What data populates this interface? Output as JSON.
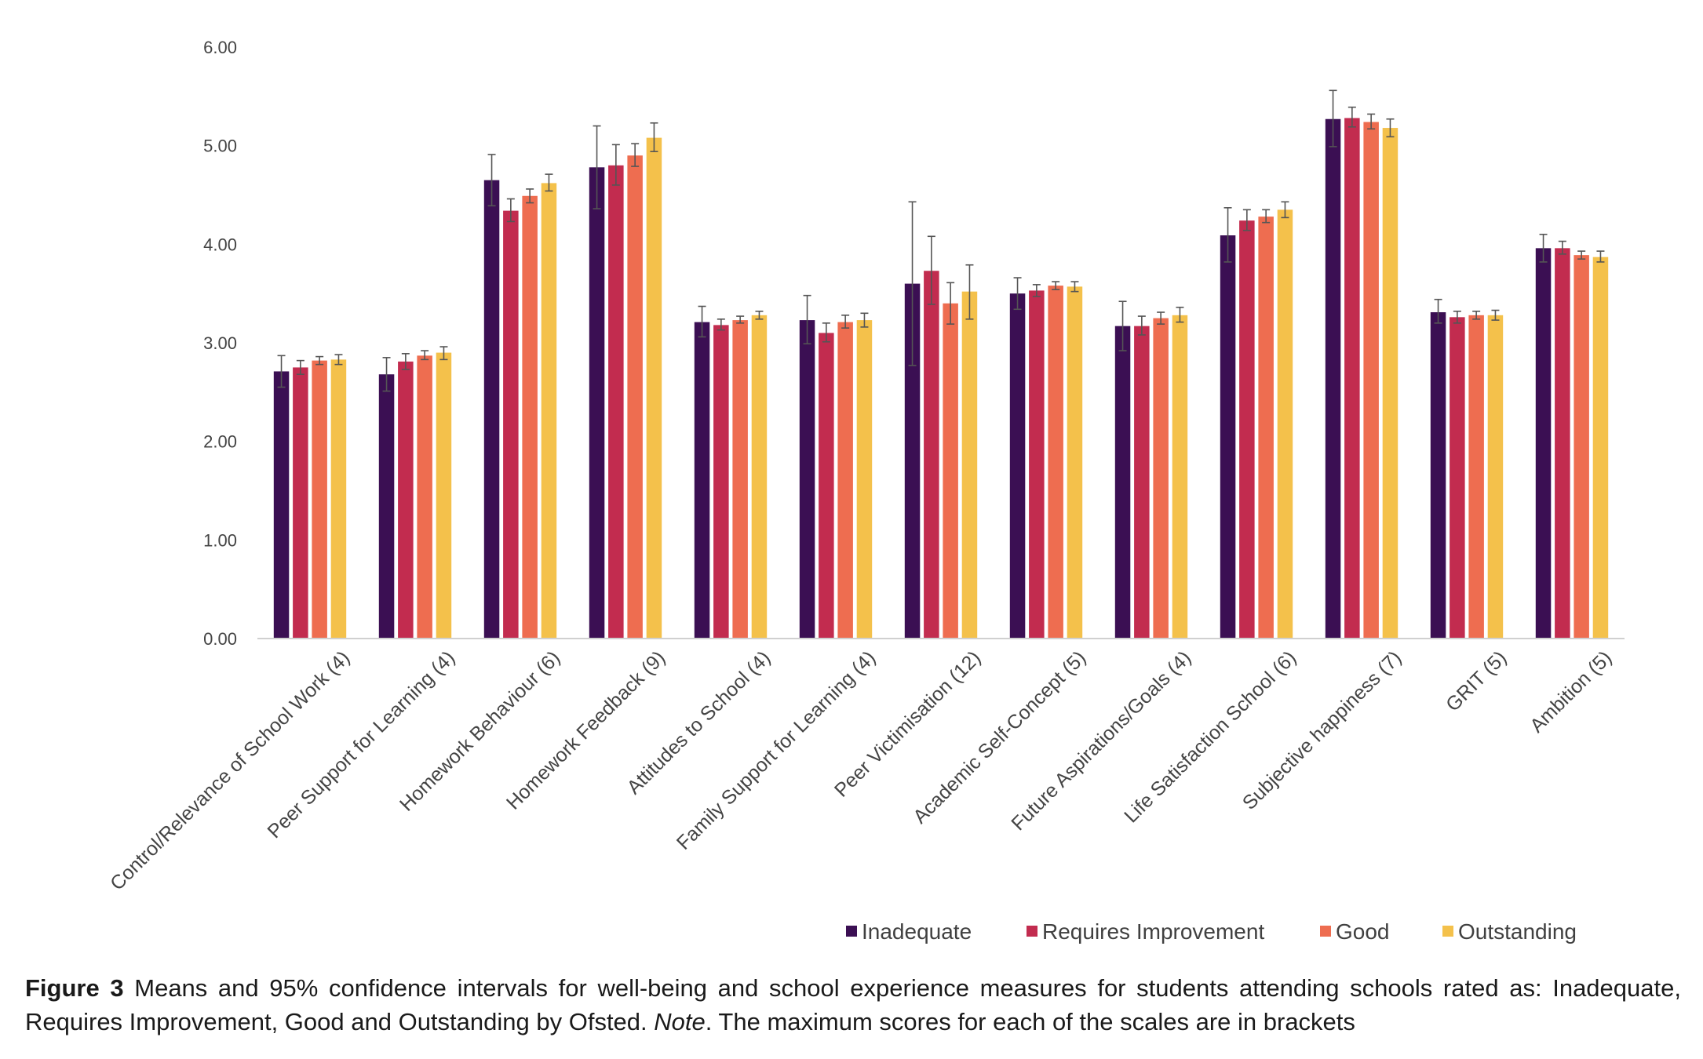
{
  "chart_data": {
    "type": "bar",
    "title": "",
    "xlabel": "",
    "ylabel": "",
    "ylim": [
      0,
      6
    ],
    "yticks": [
      "0.00",
      "1.00",
      "2.00",
      "3.00",
      "4.00",
      "5.00",
      "6.00"
    ],
    "grid": false,
    "legend_position": "bottom-right",
    "categories": [
      "Control/Relevance of School Work (4)",
      "Peer Support for Learning (4)",
      "Homework Behaviour (6)",
      "Homework Feedback (9)",
      "Attitudes to School (4)",
      "Family Support for Learning (4)",
      "Peer Victimisation (12)",
      "Academic Self-Concept (5)",
      "Future Aspirations/Goals (4)",
      "Life Satisfaction School (6)",
      "Subjective happiness (7)",
      "GRIT (5)",
      "Ambition (5)"
    ],
    "series": [
      {
        "name": "Inadequate",
        "color": "#3b0f53",
        "values": [
          2.71,
          2.68,
          4.65,
          4.78,
          3.21,
          3.23,
          3.6,
          3.5,
          3.17,
          4.09,
          5.27,
          3.31,
          3.96
        ],
        "ci_low": [
          2.55,
          2.51,
          4.39,
          4.36,
          3.06,
          2.99,
          2.77,
          3.34,
          2.92,
          3.82,
          4.99,
          3.2,
          3.82
        ],
        "ci_high": [
          2.87,
          2.85,
          4.91,
          5.2,
          3.37,
          3.48,
          4.43,
          3.66,
          3.42,
          4.37,
          5.56,
          3.44,
          4.1
        ]
      },
      {
        "name": "Requires Improvement",
        "color": "#c22c4f",
        "values": [
          2.75,
          2.81,
          4.34,
          4.8,
          3.18,
          3.1,
          3.73,
          3.53,
          3.17,
          4.24,
          5.28,
          3.26,
          3.96
        ],
        "ci_low": [
          2.68,
          2.73,
          4.23,
          4.6,
          3.13,
          3.01,
          3.39,
          3.47,
          3.08,
          4.14,
          5.19,
          3.2,
          3.9
        ],
        "ci_high": [
          2.82,
          2.89,
          4.46,
          5.01,
          3.24,
          3.2,
          4.08,
          3.59,
          3.27,
          4.35,
          5.39,
          3.32,
          4.03
        ]
      },
      {
        "name": "Good",
        "color": "#ee6d50",
        "values": [
          2.82,
          2.87,
          4.49,
          4.9,
          3.23,
          3.21,
          3.4,
          3.58,
          3.25,
          4.28,
          5.24,
          3.28,
          3.89
        ],
        "ci_low": [
          2.78,
          2.83,
          4.42,
          4.79,
          3.2,
          3.15,
          3.19,
          3.54,
          3.19,
          4.22,
          5.17,
          3.24,
          3.85
        ],
        "ci_high": [
          2.86,
          2.92,
          4.56,
          5.02,
          3.27,
          3.28,
          3.61,
          3.62,
          3.31,
          4.35,
          5.32,
          3.32,
          3.93
        ]
      },
      {
        "name": "Outstanding",
        "color": "#f4c14b",
        "values": [
          2.83,
          2.9,
          4.62,
          5.08,
          3.28,
          3.23,
          3.52,
          3.57,
          3.28,
          4.35,
          5.18,
          3.28,
          3.87
        ],
        "ci_low": [
          2.78,
          2.83,
          4.54,
          4.94,
          3.24,
          3.16,
          3.24,
          3.52,
          3.21,
          4.27,
          5.09,
          3.23,
          3.82
        ],
        "ci_high": [
          2.88,
          2.96,
          4.71,
          5.23,
          3.32,
          3.3,
          3.79,
          3.62,
          3.36,
          4.43,
          5.27,
          3.33,
          3.93
        ]
      }
    ]
  },
  "caption": {
    "label": "Figure 3",
    "text1": " Means and 95% confidence intervals for well-being and school experience measures for students attending schools rated as: Inadequate, Requires Improvement, Good and Outstanding by Ofsted. ",
    "note": "Note",
    "text2": ". The maximum scores for each of the scales are in brackets"
  }
}
